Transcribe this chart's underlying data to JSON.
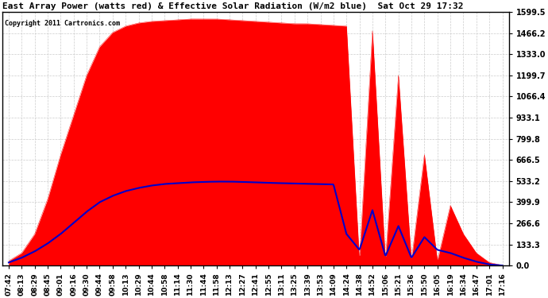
{
  "title": "East Array Power (watts red) & Effective Solar Radiation (W/m2 blue)  Sat Oct 29 17:32",
  "copyright": "Copyright 2011 Cartronics.com",
  "ylabel_right_values": [
    0.0,
    133.3,
    266.6,
    399.9,
    533.2,
    666.5,
    799.8,
    933.1,
    1066.4,
    1199.7,
    1333.0,
    1466.2,
    1599.5
  ],
  "ymax": 1599.5,
  "ymin": 0.0,
  "x_labels": [
    "07:42",
    "08:13",
    "08:29",
    "08:45",
    "09:01",
    "09:16",
    "09:30",
    "09:44",
    "09:58",
    "10:13",
    "10:29",
    "10:44",
    "10:58",
    "11:14",
    "11:30",
    "11:44",
    "11:58",
    "12:13",
    "12:27",
    "12:41",
    "12:55",
    "13:11",
    "13:25",
    "13:39",
    "13:53",
    "14:09",
    "14:24",
    "14:38",
    "14:52",
    "15:06",
    "15:21",
    "15:36",
    "15:50",
    "16:05",
    "16:19",
    "16:34",
    "16:47",
    "17:01",
    "17:16"
  ],
  "bg_color": "#ffffff",
  "grid_color": "#cccccc",
  "red_color": "#ff0000",
  "blue_color": "#0000cc",
  "red_data": [
    30,
    80,
    200,
    420,
    700,
    950,
    1200,
    1380,
    1470,
    1510,
    1530,
    1540,
    1545,
    1550,
    1555,
    1555,
    1555,
    1550,
    1545,
    1540,
    1535,
    1530,
    1525,
    1525,
    1520,
    1515,
    1510,
    30,
    1480,
    30,
    1200,
    30,
    700,
    30,
    380,
    200,
    80,
    20,
    2
  ],
  "blue_data": [
    20,
    50,
    90,
    140,
    200,
    270,
    340,
    400,
    440,
    470,
    490,
    505,
    515,
    520,
    525,
    528,
    530,
    530,
    528,
    525,
    522,
    520,
    518,
    516,
    514,
    512,
    200,
    100,
    350,
    60,
    250,
    50,
    180,
    100,
    80,
    50,
    25,
    8,
    1
  ]
}
